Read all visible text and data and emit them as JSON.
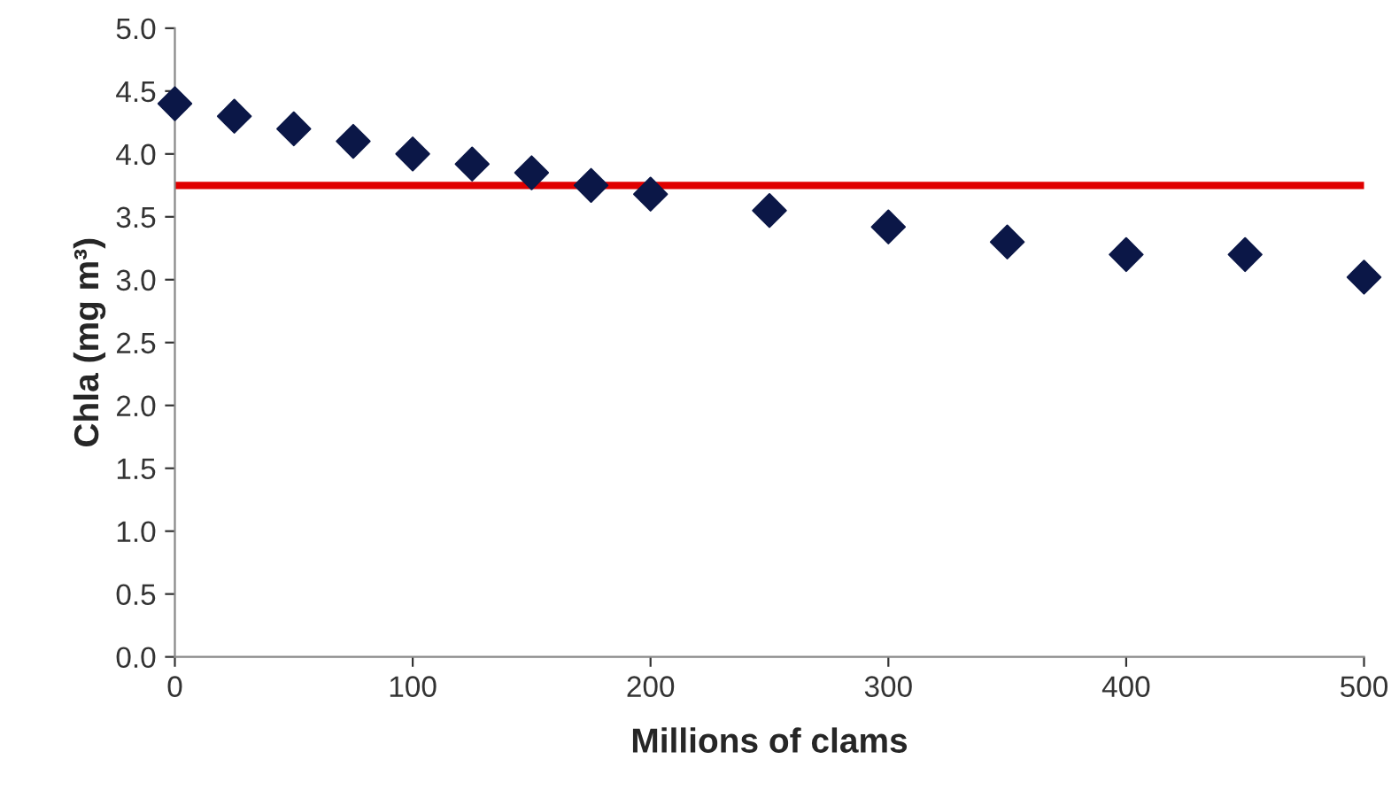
{
  "chart_data": {
    "type": "scatter",
    "xlabel": "Millions of clams",
    "ylabel": "Chla (mg m³)",
    "x": [
      0,
      25,
      50,
      75,
      100,
      125,
      150,
      175,
      200,
      250,
      300,
      350,
      400,
      450,
      500
    ],
    "series": [
      {
        "color": "#0b1747",
        "values": [
          4.4,
          4.3,
          4.2,
          4.1,
          4.0,
          3.92,
          3.85,
          3.75,
          3.68,
          3.55,
          3.42,
          3.3,
          3.2,
          3.2,
          3.02
        ]
      }
    ],
    "marker": "diamond",
    "ref_lines": [
      {
        "axis": "y",
        "value": 3.75,
        "color": "#e00000",
        "line_style": "solid"
      }
    ],
    "xlim": [
      0,
      500
    ],
    "xticks": [
      0,
      100,
      200,
      300,
      400,
      500
    ],
    "ylim": [
      0,
      5
    ],
    "yticks": [
      {
        "value": 0,
        "label": "0.0"
      },
      {
        "value": 0.5,
        "label": "0.5"
      },
      {
        "value": 1,
        "label": "1.0"
      },
      {
        "value": 1.5,
        "label": "1.5"
      },
      {
        "value": 2,
        "label": "2.0"
      },
      {
        "value": 2.5,
        "label": "2.5"
      },
      {
        "value": 3,
        "label": "3.0"
      },
      {
        "value": 3.5,
        "label": "3.5"
      },
      {
        "value": 4,
        "label": "4.0"
      },
      {
        "value": 4.5,
        "label": "4.5"
      },
      {
        "value": 5,
        "label": "5.0"
      }
    ],
    "grid": false,
    "legend": false
  }
}
